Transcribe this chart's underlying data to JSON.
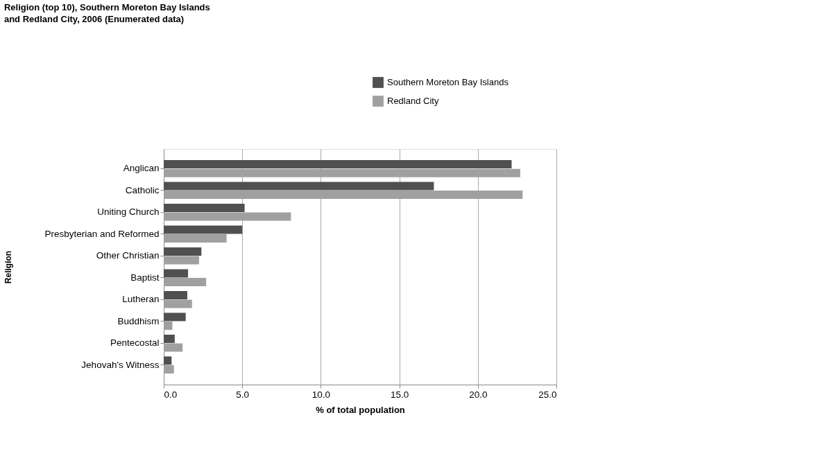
{
  "chart_data": {
    "type": "bar",
    "orientation": "horizontal",
    "title": "Religion (top 10), Southern Moreton Bay Islands and Redland City, 2006 (Enumerated data)",
    "xlabel": "% of total population",
    "ylabel": "Religion",
    "categories": [
      "Anglican",
      "Catholic",
      "Uniting Church",
      "Presbyterian and Reformed",
      "Other Christian",
      "Baptist",
      "Lutheran",
      "Buddhism",
      "Pentecostal",
      "Jehovah's Witness"
    ],
    "series": [
      {
        "name": "Southern Moreton Bay Islands",
        "color": "#505050",
        "values": [
          22.15,
          17.2,
          5.15,
          5.0,
          2.4,
          1.55,
          1.5,
          1.4,
          0.7,
          0.5
        ]
      },
      {
        "name": "Redland City",
        "color": "#a0a0a0",
        "values": [
          22.7,
          22.85,
          8.1,
          4.0,
          2.25,
          2.7,
          1.8,
          0.55,
          1.2,
          0.65
        ]
      }
    ],
    "xlim": [
      0,
      25
    ],
    "xticks": [
      {
        "value": 0,
        "label": "0.0"
      },
      {
        "value": 5,
        "label": "5.0"
      },
      {
        "value": 10,
        "label": "10.0"
      },
      {
        "value": 15,
        "label": "15.0"
      },
      {
        "value": 20,
        "label": "20.0"
      },
      {
        "value": 25,
        "label": "25.0"
      }
    ],
    "grid": "x",
    "legend": "top right"
  }
}
